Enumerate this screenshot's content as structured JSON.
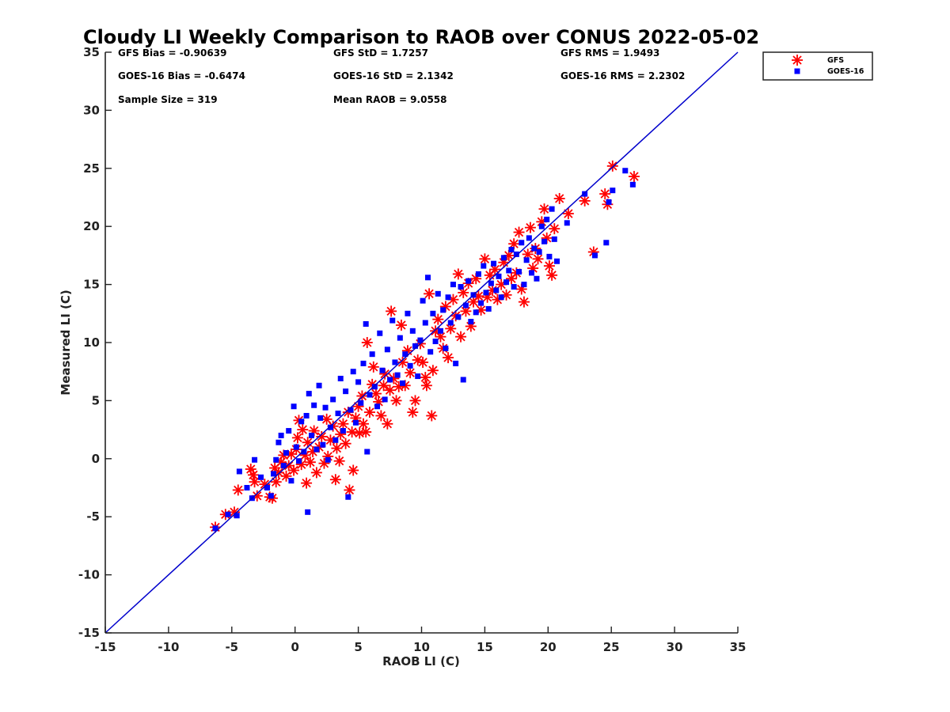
{
  "chart_data": {
    "type": "scatter",
    "title": "Cloudy LI Weekly Comparison to RAOB over CONUS 2022-05-02",
    "xlabel": "RAOB LI (C)",
    "ylabel": "Measured LI (C)",
    "xlim": [
      -15,
      35
    ],
    "ylim": [
      -15,
      35
    ],
    "xticks": [
      -15,
      -10,
      -5,
      0,
      5,
      10,
      15,
      20,
      25,
      30,
      35
    ],
    "yticks": [
      -15,
      -10,
      -5,
      0,
      5,
      10,
      15,
      20,
      25,
      30,
      35
    ],
    "grid": false,
    "legend_position": "outside-top-right",
    "reference_line": {
      "name": "1:1 line",
      "x": [
        -15,
        35
      ],
      "y": [
        -15,
        35
      ],
      "color": "#0000cc"
    },
    "stats": {
      "gfs_bias": "GFS Bias = -0.90639",
      "gfs_std": "GFS StD = 1.7257",
      "gfs_rms": "GFS RMS = 1.9493",
      "goes_bias": "GOES-16 Bias = -0.6474",
      "goes_std": "GOES-16 StD = 2.1342",
      "goes_rms": "GOES-16 RMS = 2.2302",
      "sample_size": "Sample Size = 319",
      "mean_raob": "Mean RAOB = 9.0558"
    },
    "series": [
      {
        "name": "GFS",
        "marker": "asterisk",
        "color": "#ff0000",
        "points": [
          [
            -6.3,
            -5.9
          ],
          [
            -5.5,
            -4.8
          ],
          [
            -4.8,
            -4.6
          ],
          [
            -4.5,
            -2.7
          ],
          [
            -3.5,
            -0.9
          ],
          [
            -3.3,
            -1.4
          ],
          [
            -3.2,
            -2.0
          ],
          [
            -3.0,
            -3.2
          ],
          [
            -2.4,
            -2.2
          ],
          [
            -2.0,
            -3.3
          ],
          [
            -1.8,
            -3.4
          ],
          [
            -1.6,
            -0.8
          ],
          [
            -1.5,
            -2.0
          ],
          [
            -1.3,
            -1.2
          ],
          [
            -1.1,
            -0.3
          ],
          [
            -0.9,
            0.3
          ],
          [
            -0.7,
            -1.5
          ],
          [
            -0.5,
            -0.6
          ],
          [
            -0.3,
            0.4
          ],
          [
            -0.1,
            -1.0
          ],
          [
            0.1,
            0.8
          ],
          [
            0.2,
            1.8
          ],
          [
            0.3,
            3.3
          ],
          [
            0.5,
            -0.5
          ],
          [
            0.6,
            2.5
          ],
          [
            0.8,
            0.3
          ],
          [
            0.9,
            -2.1
          ],
          [
            1.0,
            1.4
          ],
          [
            1.2,
            -0.3
          ],
          [
            1.4,
            0.6
          ],
          [
            1.5,
            2.4
          ],
          [
            1.7,
            -1.2
          ],
          [
            1.9,
            1.0
          ],
          [
            2.1,
            1.9
          ],
          [
            2.3,
            -0.4
          ],
          [
            2.5,
            3.4
          ],
          [
            2.6,
            0.2
          ],
          [
            2.8,
            1.6
          ],
          [
            3.0,
            2.8
          ],
          [
            3.2,
            -1.8
          ],
          [
            3.3,
            0.9
          ],
          [
            3.5,
            -0.2
          ],
          [
            3.6,
            2.1
          ],
          [
            3.8,
            3.0
          ],
          [
            4.0,
            1.3
          ],
          [
            4.2,
            4.0
          ],
          [
            4.3,
            -2.7
          ],
          [
            4.5,
            2.3
          ],
          [
            4.6,
            -1.0
          ],
          [
            4.8,
            3.5
          ],
          [
            5.0,
            4.5
          ],
          [
            5.1,
            2.2
          ],
          [
            5.3,
            5.4
          ],
          [
            5.4,
            3.0
          ],
          [
            5.6,
            2.3
          ],
          [
            5.7,
            10.0
          ],
          [
            5.9,
            4.0
          ],
          [
            6.1,
            6.4
          ],
          [
            6.2,
            7.9
          ],
          [
            6.4,
            5.6
          ],
          [
            6.6,
            4.9
          ],
          [
            6.8,
            3.7
          ],
          [
            7.0,
            6.3
          ],
          [
            7.1,
            7.3
          ],
          [
            7.3,
            3.0
          ],
          [
            7.5,
            5.9
          ],
          [
            7.6,
            12.7
          ],
          [
            7.8,
            6.9
          ],
          [
            8.0,
            5.0
          ],
          [
            8.2,
            6.2
          ],
          [
            8.4,
            11.5
          ],
          [
            8.5,
            8.3
          ],
          [
            8.7,
            6.3
          ],
          [
            8.9,
            9.3
          ],
          [
            9.1,
            7.4
          ],
          [
            9.3,
            4.0
          ],
          [
            9.5,
            5.0
          ],
          [
            9.7,
            8.5
          ],
          [
            9.9,
            9.9
          ],
          [
            10.1,
            8.3
          ],
          [
            10.3,
            7.0
          ],
          [
            10.4,
            6.3
          ],
          [
            10.6,
            14.2
          ],
          [
            10.8,
            3.7
          ],
          [
            10.9,
            7.6
          ],
          [
            11.1,
            11.0
          ],
          [
            11.3,
            12.0
          ],
          [
            11.5,
            10.5
          ],
          [
            11.7,
            9.5
          ],
          [
            11.9,
            13.1
          ],
          [
            12.1,
            8.7
          ],
          [
            12.3,
            11.2
          ],
          [
            12.5,
            13.7
          ],
          [
            12.7,
            12.3
          ],
          [
            12.9,
            15.9
          ],
          [
            13.1,
            10.5
          ],
          [
            13.3,
            14.3
          ],
          [
            13.5,
            12.7
          ],
          [
            13.7,
            15.1
          ],
          [
            13.9,
            11.4
          ],
          [
            14.1,
            13.5
          ],
          [
            14.3,
            15.5
          ],
          [
            14.5,
            14.0
          ],
          [
            14.7,
            12.8
          ],
          [
            15.0,
            17.2
          ],
          [
            15.2,
            13.9
          ],
          [
            15.4,
            15.8
          ],
          [
            15.6,
            14.5
          ],
          [
            15.8,
            16.3
          ],
          [
            16.0,
            13.7
          ],
          [
            16.3,
            15.0
          ],
          [
            16.5,
            16.9
          ],
          [
            16.7,
            14.1
          ],
          [
            16.9,
            17.5
          ],
          [
            17.1,
            15.5
          ],
          [
            17.3,
            18.5
          ],
          [
            17.5,
            16.0
          ],
          [
            17.7,
            19.5
          ],
          [
            17.9,
            14.6
          ],
          [
            18.1,
            13.5
          ],
          [
            18.4,
            17.6
          ],
          [
            18.6,
            19.9
          ],
          [
            18.8,
            16.4
          ],
          [
            19.0,
            18.1
          ],
          [
            19.2,
            17.2
          ],
          [
            19.5,
            20.4
          ],
          [
            19.7,
            21.5
          ],
          [
            19.9,
            19.0
          ],
          [
            20.1,
            16.6
          ],
          [
            20.3,
            15.8
          ],
          [
            20.5,
            19.8
          ],
          [
            20.9,
            22.4
          ],
          [
            21.6,
            21.1
          ],
          [
            22.9,
            22.2
          ],
          [
            23.6,
            17.8
          ],
          [
            24.5,
            22.8
          ],
          [
            24.7,
            21.9
          ],
          [
            25.1,
            25.2
          ],
          [
            26.8,
            24.3
          ]
        ]
      },
      {
        "name": "GOES-16",
        "marker": "square",
        "color": "#0000ff",
        "points": [
          [
            -6.3,
            -6.0
          ],
          [
            -5.3,
            -4.8
          ],
          [
            -4.6,
            -4.9
          ],
          [
            -4.4,
            -1.1
          ],
          [
            -3.8,
            -2.5
          ],
          [
            -3.4,
            -3.4
          ],
          [
            -3.2,
            -0.1
          ],
          [
            -2.7,
            -1.6
          ],
          [
            -2.2,
            -2.5
          ],
          [
            -1.9,
            -3.2
          ],
          [
            -1.7,
            -1.3
          ],
          [
            -1.5,
            -0.1
          ],
          [
            -1.3,
            1.4
          ],
          [
            -1.1,
            2.0
          ],
          [
            -0.9,
            -0.6
          ],
          [
            -0.7,
            0.5
          ],
          [
            -0.5,
            2.4
          ],
          [
            -0.3,
            -1.9
          ],
          [
            -0.1,
            4.5
          ],
          [
            0.1,
            1.0
          ],
          [
            0.3,
            -0.2
          ],
          [
            0.5,
            3.2
          ],
          [
            0.7,
            0.6
          ],
          [
            0.9,
            3.7
          ],
          [
            1.0,
            -4.6
          ],
          [
            1.1,
            5.6
          ],
          [
            1.3,
            2.0
          ],
          [
            1.5,
            4.6
          ],
          [
            1.7,
            0.8
          ],
          [
            1.9,
            6.3
          ],
          [
            2.0,
            3.5
          ],
          [
            2.2,
            1.2
          ],
          [
            2.4,
            4.4
          ],
          [
            2.6,
            -0.1
          ],
          [
            2.8,
            2.7
          ],
          [
            3.0,
            5.1
          ],
          [
            3.2,
            1.6
          ],
          [
            3.4,
            3.9
          ],
          [
            3.6,
            6.9
          ],
          [
            3.8,
            2.4
          ],
          [
            4.0,
            5.8
          ],
          [
            4.2,
            -3.3
          ],
          [
            4.4,
            4.2
          ],
          [
            4.6,
            7.5
          ],
          [
            4.8,
            3.1
          ],
          [
            5.0,
            6.6
          ],
          [
            5.2,
            4.8
          ],
          [
            5.4,
            8.2
          ],
          [
            5.6,
            11.6
          ],
          [
            5.7,
            0.6
          ],
          [
            5.9,
            5.5
          ],
          [
            6.1,
            9.0
          ],
          [
            6.3,
            6.2
          ],
          [
            6.5,
            4.5
          ],
          [
            6.7,
            10.8
          ],
          [
            6.9,
            7.6
          ],
          [
            7.1,
            5.1
          ],
          [
            7.3,
            9.4
          ],
          [
            7.5,
            6.8
          ],
          [
            7.7,
            11.9
          ],
          [
            7.9,
            8.3
          ],
          [
            8.1,
            7.2
          ],
          [
            8.3,
            10.4
          ],
          [
            8.5,
            6.5
          ],
          [
            8.7,
            9.0
          ],
          [
            8.9,
            12.5
          ],
          [
            9.1,
            8.0
          ],
          [
            9.3,
            11.0
          ],
          [
            9.5,
            9.7
          ],
          [
            9.7,
            7.1
          ],
          [
            9.9,
            10.2
          ],
          [
            10.1,
            13.6
          ],
          [
            10.3,
            11.7
          ],
          [
            10.5,
            15.6
          ],
          [
            10.7,
            9.2
          ],
          [
            10.9,
            12.5
          ],
          [
            11.1,
            10.1
          ],
          [
            11.3,
            14.2
          ],
          [
            11.5,
            11.0
          ],
          [
            11.7,
            12.8
          ],
          [
            11.9,
            9.5
          ],
          [
            12.1,
            13.9
          ],
          [
            12.3,
            11.7
          ],
          [
            12.5,
            15.0
          ],
          [
            12.7,
            8.2
          ],
          [
            12.9,
            12.2
          ],
          [
            13.1,
            14.8
          ],
          [
            13.3,
            6.8
          ],
          [
            13.5,
            13.2
          ],
          [
            13.7,
            15.3
          ],
          [
            13.9,
            11.8
          ],
          [
            14.1,
            14.1
          ],
          [
            14.3,
            12.6
          ],
          [
            14.5,
            15.9
          ],
          [
            14.7,
            13.4
          ],
          [
            14.9,
            16.6
          ],
          [
            15.1,
            14.3
          ],
          [
            15.3,
            12.9
          ],
          [
            15.5,
            15.1
          ],
          [
            15.7,
            16.8
          ],
          [
            15.9,
            14.5
          ],
          [
            16.1,
            15.7
          ],
          [
            16.3,
            13.9
          ],
          [
            16.5,
            17.3
          ],
          [
            16.7,
            15.2
          ],
          [
            16.9,
            16.2
          ],
          [
            17.1,
            18.0
          ],
          [
            17.3,
            14.8
          ],
          [
            17.5,
            17.6
          ],
          [
            17.7,
            16.1
          ],
          [
            17.9,
            18.6
          ],
          [
            18.1,
            15.0
          ],
          [
            18.3,
            17.1
          ],
          [
            18.5,
            19.0
          ],
          [
            18.7,
            16.0
          ],
          [
            18.9,
            18.1
          ],
          [
            19.1,
            15.5
          ],
          [
            19.3,
            17.8
          ],
          [
            19.5,
            20.0
          ],
          [
            19.7,
            18.7
          ],
          [
            19.9,
            20.6
          ],
          [
            20.1,
            17.4
          ],
          [
            20.3,
            21.5
          ],
          [
            20.5,
            18.9
          ],
          [
            20.7,
            17.0
          ],
          [
            21.5,
            20.3
          ],
          [
            22.9,
            22.8
          ],
          [
            23.7,
            17.5
          ],
          [
            24.6,
            18.6
          ],
          [
            24.8,
            22.1
          ],
          [
            25.1,
            23.1
          ],
          [
            26.1,
            24.8
          ],
          [
            26.7,
            23.6
          ]
        ]
      }
    ]
  }
}
